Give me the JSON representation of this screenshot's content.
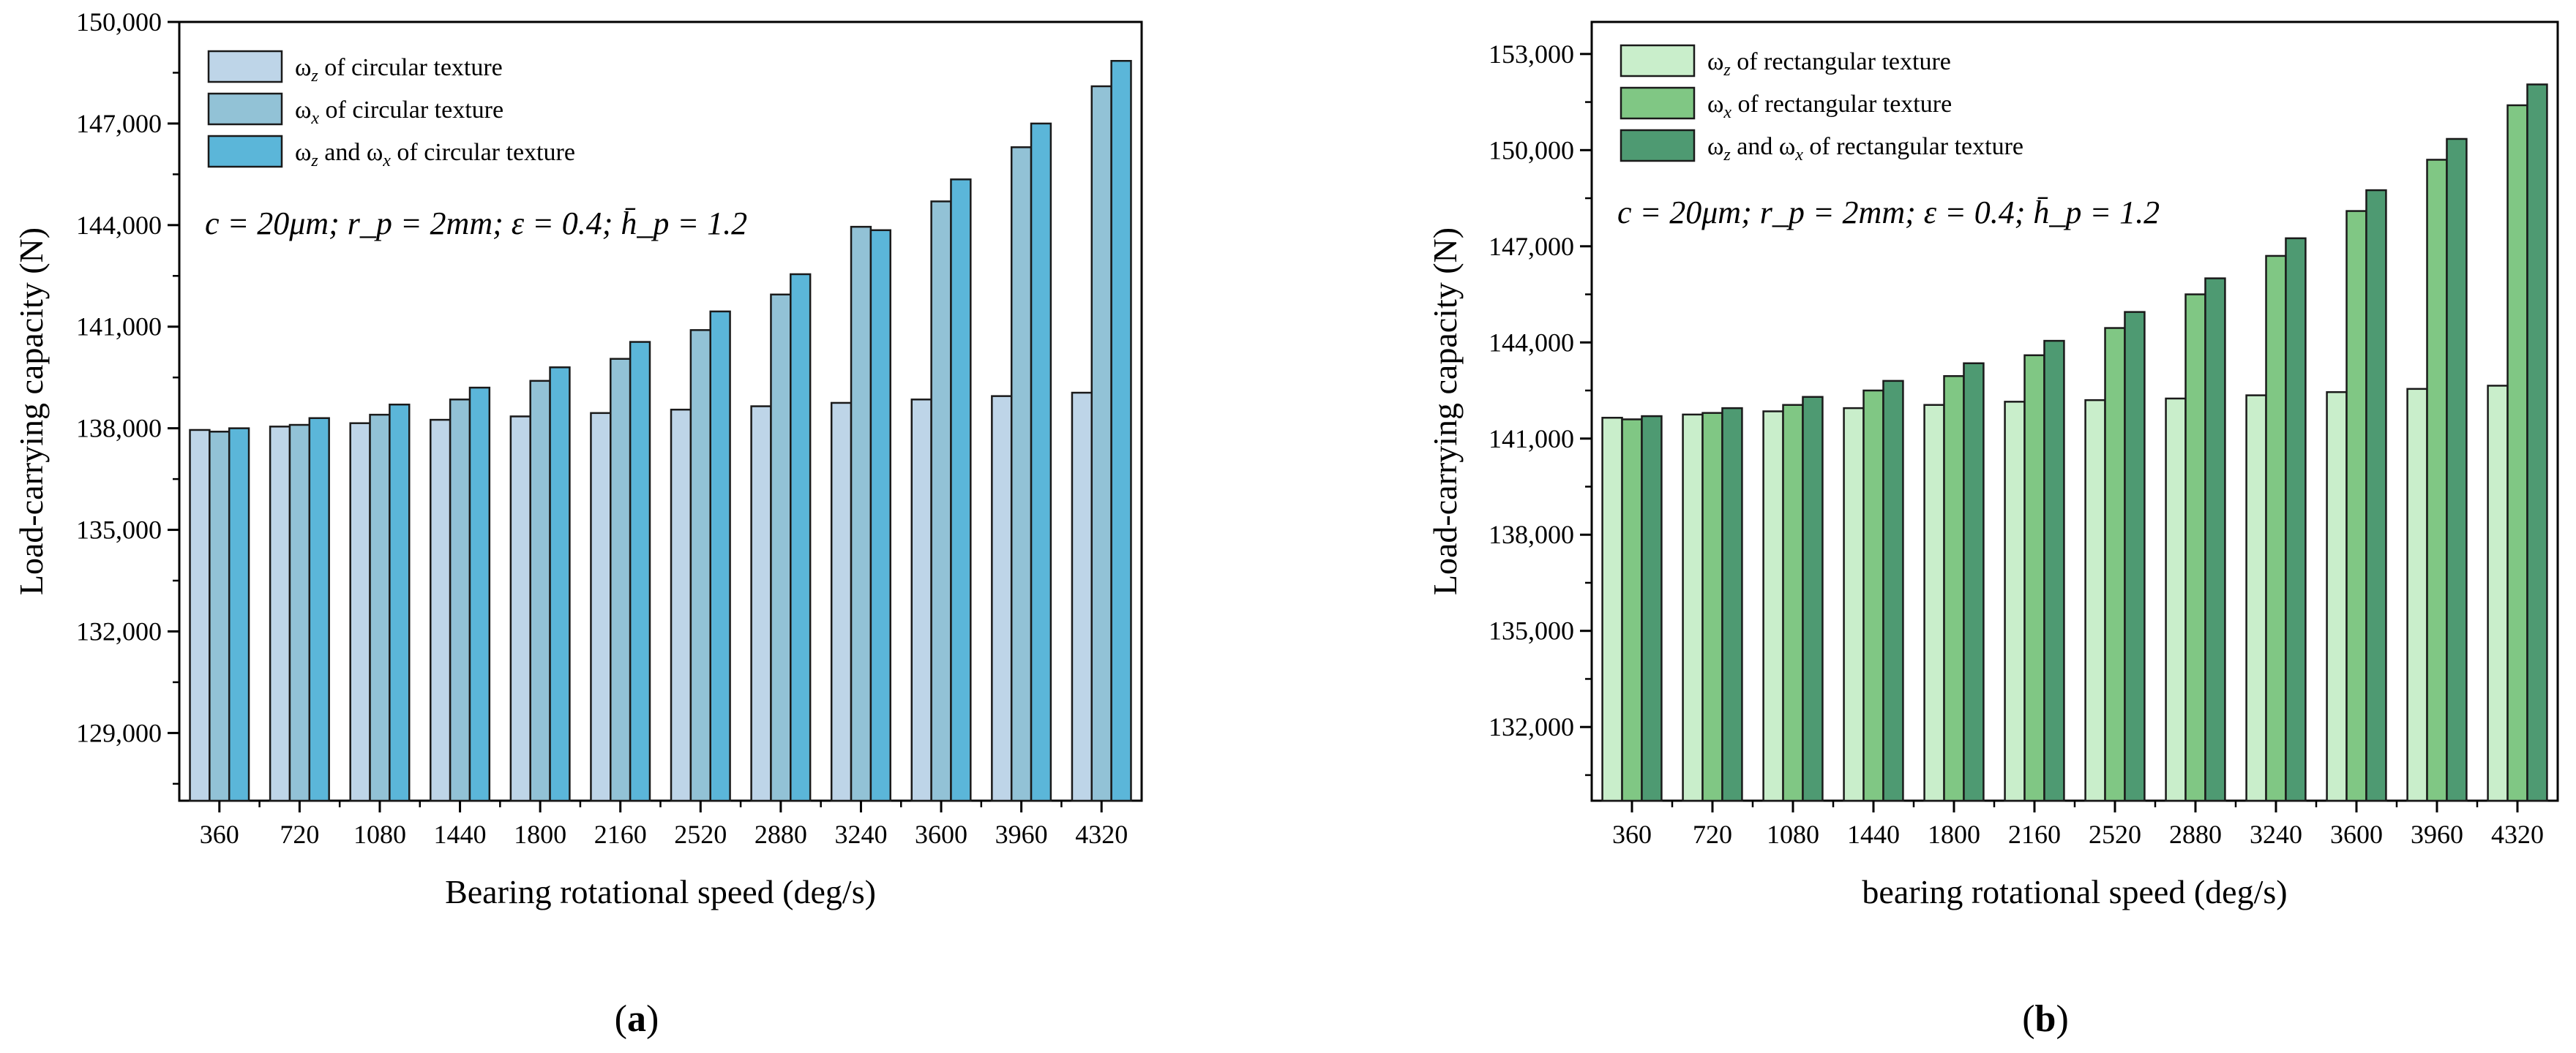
{
  "chart_data": [
    {
      "type": "bar",
      "panel_label": "(a)",
      "xlabel": "Bearing rotational speed (deg/s)",
      "ylabel": "Load-carrying capacity (N)",
      "annotation": "c = 20μm; r_p = 2mm; ε = 0.4; h̄_p = 1.2",
      "ylim": [
        127000,
        150000
      ],
      "yticks": [
        129000,
        132000,
        135000,
        138000,
        141000,
        144000,
        147000,
        150000
      ],
      "ytick_labels": [
        "129,000",
        "132,000",
        "135,000",
        "138,000",
        "141,000",
        "144,000",
        "147,000",
        "150,000"
      ],
      "categories": [
        "360",
        "720",
        "1080",
        "1440",
        "1800",
        "2160",
        "2520",
        "2880",
        "3240",
        "3600",
        "3960",
        "4320"
      ],
      "legend": {
        "position": "top-left"
      },
      "series": [
        {
          "name": "ω_z of circular texture",
          "color": "#bed5e8",
          "values": [
            137950,
            138050,
            138150,
            138250,
            138350,
            138450,
            138550,
            138650,
            138750,
            138850,
            138950,
            139050
          ]
        },
        {
          "name": "ω_x of circular texture",
          "color": "#92c2d6",
          "values": [
            137900,
            138100,
            138400,
            138850,
            139400,
            140050,
            140900,
            141950,
            143950,
            144700,
            146300,
            148100
          ]
        },
        {
          "name": "ω_z and ω_x of circular texture",
          "color": "#5bb6d9",
          "values": [
            138000,
            138300,
            138700,
            139200,
            139800,
            140550,
            141450,
            142550,
            143850,
            145350,
            147000,
            148850
          ]
        }
      ]
    },
    {
      "type": "bar",
      "panel_label": "(b)",
      "xlabel": "bearing rotational speed (deg/s)",
      "ylabel": "Load-carrying capacity (N)",
      "annotation": "c = 20μm; r_p = 2mm; ε = 0.4; h̄_p = 1.2",
      "ylim": [
        129700,
        154000
      ],
      "yticks": [
        132000,
        135000,
        138000,
        141000,
        144000,
        147000,
        150000,
        153000
      ],
      "ytick_labels": [
        "132,000",
        "135,000",
        "138,000",
        "141,000",
        "144,000",
        "147,000",
        "150,000",
        "153,000"
      ],
      "categories": [
        "360",
        "720",
        "1080",
        "1440",
        "1800",
        "2160",
        "2520",
        "2880",
        "3240",
        "3600",
        "3960",
        "4320"
      ],
      "legend": {
        "position": "top-left"
      },
      "series": [
        {
          "name": "ω_z of rectangular texture",
          "color": "#c9eecb",
          "values": [
            141650,
            141750,
            141850,
            141950,
            142050,
            142150,
            142200,
            142250,
            142350,
            142450,
            142550,
            142650
          ]
        },
        {
          "name": "ω_x of rectangular texture",
          "color": "#80c784",
          "values": [
            141600,
            141800,
            142050,
            142500,
            142950,
            143600,
            144450,
            145500,
            146700,
            148100,
            149700,
            151400
          ]
        },
        {
          "name": "ω_z and ω_x of rectangular texture",
          "color": "#4e9a72",
          "values": [
            141700,
            141950,
            142300,
            142800,
            143350,
            144050,
            144950,
            146000,
            147250,
            148750,
            150350,
            152050
          ]
        }
      ]
    }
  ]
}
